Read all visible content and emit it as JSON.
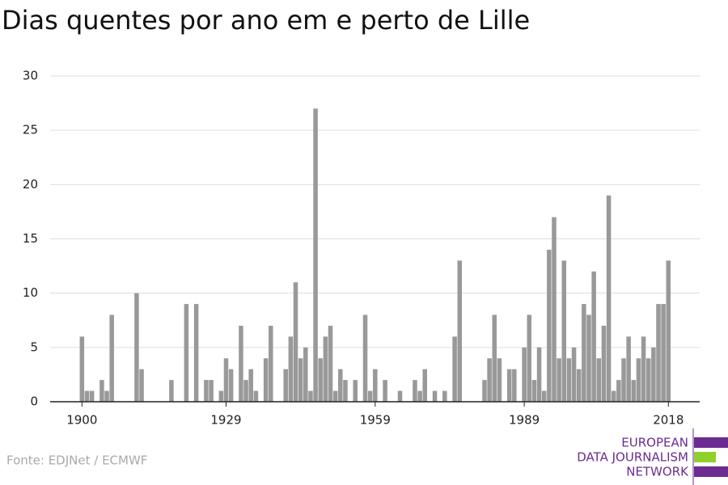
{
  "chart_data": {
    "type": "bar",
    "title": "Dias quentes por ano em e perto de Lille",
    "source": "Fonte: EDJNet / ECMWF",
    "logo": [
      "EUROPEAN",
      "DATA JOURNALISM",
      "NETWORK"
    ],
    "x": [
      1900,
      1901,
      1902,
      1903,
      1904,
      1905,
      1906,
      1907,
      1908,
      1909,
      1910,
      1911,
      1912,
      1913,
      1914,
      1915,
      1916,
      1917,
      1918,
      1919,
      1920,
      1921,
      1922,
      1923,
      1924,
      1925,
      1926,
      1927,
      1928,
      1929,
      1930,
      1931,
      1932,
      1933,
      1934,
      1935,
      1936,
      1937,
      1938,
      1939,
      1940,
      1941,
      1942,
      1943,
      1944,
      1945,
      1946,
      1947,
      1948,
      1949,
      1950,
      1951,
      1952,
      1953,
      1954,
      1955,
      1956,
      1957,
      1958,
      1959,
      1960,
      1961,
      1962,
      1963,
      1964,
      1965,
      1966,
      1967,
      1968,
      1969,
      1970,
      1971,
      1972,
      1973,
      1974,
      1975,
      1976,
      1977,
      1978,
      1979,
      1980,
      1981,
      1982,
      1983,
      1984,
      1985,
      1986,
      1987,
      1988,
      1989,
      1990,
      1991,
      1992,
      1993,
      1994,
      1995,
      1996,
      1997,
      1998,
      1999,
      2000,
      2001,
      2002,
      2003,
      2004,
      2005,
      2006,
      2007,
      2008,
      2009,
      2010,
      2011,
      2012,
      2013,
      2014,
      2015,
      2016,
      2017,
      2018
    ],
    "values": [
      6,
      1,
      1,
      0,
      2,
      1,
      8,
      0,
      0,
      0,
      0,
      10,
      3,
      0,
      0,
      0,
      0,
      0,
      2,
      0,
      0,
      9,
      0,
      9,
      0,
      2,
      2,
      0,
      1,
      4,
      3,
      0,
      7,
      2,
      3,
      1,
      0,
      4,
      7,
      0,
      0,
      3,
      6,
      11,
      4,
      5,
      1,
      27,
      4,
      6,
      7,
      1,
      3,
      2,
      0,
      2,
      0,
      8,
      1,
      3,
      0,
      2,
      0,
      0,
      1,
      0,
      0,
      2,
      1,
      3,
      0,
      1,
      0,
      1,
      0,
      6,
      13,
      0,
      0,
      0,
      0,
      2,
      4,
      8,
      4,
      0,
      3,
      3,
      0,
      5,
      8,
      2,
      5,
      1,
      14,
      17,
      4,
      13,
      4,
      5,
      3,
      9,
      8,
      12,
      4,
      7,
      19,
      1,
      2,
      4,
      6,
      2,
      4,
      6,
      4,
      5,
      9,
      9,
      13
    ],
    "color": "#999999",
    "xlim": [
      1893.6,
      2024.3
    ],
    "xticks": [
      1900,
      1929,
      1959,
      1989,
      2018
    ],
    "ylim": [
      0,
      30
    ],
    "yticks": [
      0,
      5,
      10,
      15,
      20,
      25,
      30
    ],
    "grid": true
  }
}
